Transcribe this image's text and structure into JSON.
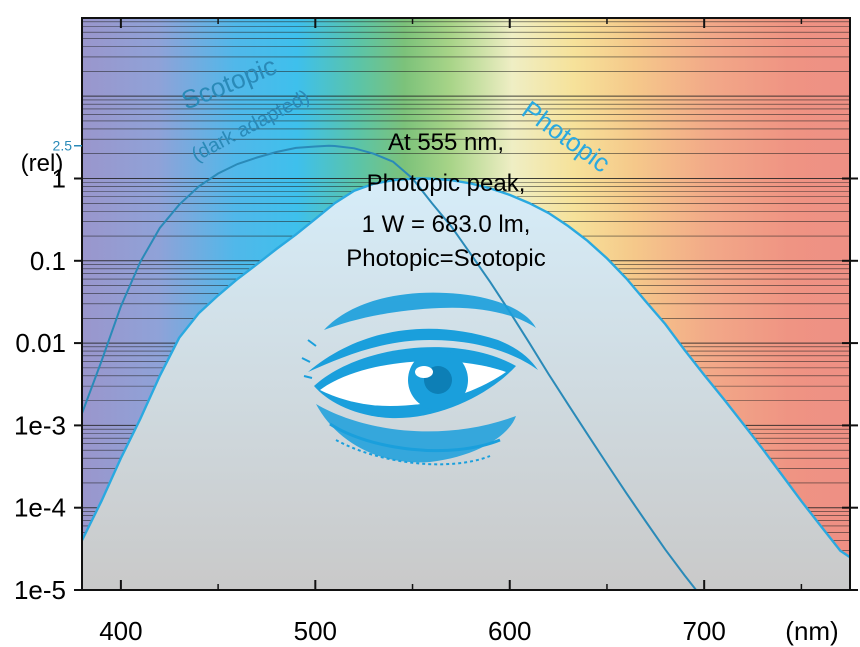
{
  "chart_data": {
    "type": "line",
    "xlabel": "(nm)",
    "ylabel": "(rel)",
    "xlim": [
      380,
      775
    ],
    "ylim_log10": [
      -5,
      1.95
    ],
    "y_scale": "log",
    "grid": true,
    "x_ticks": [
      {
        "value": 400,
        "label": "400"
      },
      {
        "value": 500,
        "label": "500"
      },
      {
        "value": 600,
        "label": "600"
      },
      {
        "value": 700,
        "label": "700"
      }
    ],
    "y_ticks": [
      {
        "value": 1,
        "label": "1"
      },
      {
        "value": 0.1,
        "label": "0.1"
      },
      {
        "value": 0.01,
        "label": "0.01"
      },
      {
        "value": 0.001,
        "label": "1e-3"
      },
      {
        "value": 0.0001,
        "label": "1e-4"
      },
      {
        "value": 1e-05,
        "label": "1e-5"
      }
    ],
    "y_marker": {
      "value": 2.5,
      "label": "2.5"
    },
    "series": [
      {
        "name": "Photopic",
        "color": "#2aa9e0",
        "x": [
          380,
          390,
          400,
          410,
          420,
          430,
          440,
          450,
          460,
          470,
          480,
          490,
          500,
          510,
          520,
          530,
          540,
          550,
          555,
          560,
          570,
          580,
          590,
          600,
          610,
          620,
          630,
          640,
          650,
          660,
          670,
          680,
          690,
          700,
          710,
          720,
          730,
          740,
          750,
          760,
          770,
          775
        ],
        "y": [
          4e-05,
          0.00012,
          0.0004,
          0.0012,
          0.004,
          0.0116,
          0.023,
          0.038,
          0.06,
          0.091,
          0.139,
          0.208,
          0.323,
          0.503,
          0.71,
          0.862,
          0.954,
          0.995,
          1.0,
          0.995,
          0.952,
          0.87,
          0.757,
          0.631,
          0.503,
          0.381,
          0.265,
          0.175,
          0.107,
          0.061,
          0.032,
          0.017,
          0.0082,
          0.0041,
          0.0021,
          0.00105,
          0.00052,
          0.00025,
          0.00012,
          6e-05,
          3e-05,
          2.5e-05
        ]
      },
      {
        "name": "Scotopic",
        "color": "#2a8ab8",
        "x": [
          380,
          390,
          400,
          410,
          420,
          430,
          440,
          450,
          460,
          470,
          480,
          490,
          500,
          507,
          510,
          520,
          530,
          540,
          550,
          560,
          570,
          580,
          590,
          600,
          610,
          620,
          630,
          640,
          650,
          660,
          670,
          680,
          690,
          700,
          710,
          720
        ],
        "y": [
          0.0014,
          0.006,
          0.028,
          0.097,
          0.25,
          0.48,
          0.8,
          1.15,
          1.5,
          1.8,
          2.1,
          2.35,
          2.45,
          2.5,
          2.48,
          2.33,
          2.0,
          1.6,
          1.0,
          0.5,
          0.26,
          0.12,
          0.055,
          0.024,
          0.0101,
          0.0042,
          0.0018,
          0.00078,
          0.00034,
          0.00015,
          6.8e-05,
          3.1e-05,
          1.5e-05,
          7.5e-06,
          3.8e-06,
          2e-06
        ]
      }
    ],
    "series_labels": {
      "scotopic": "Scotopic",
      "scotopic_sub": "(dark adapted)",
      "photopic": "Photopic"
    },
    "annotation_lines": [
      "At 555 nm,",
      "Photopic peak,",
      "1 W = 683.0 lm,",
      "Photopic=Scotopic"
    ],
    "colors": {
      "photopic_fill": "#d9ecf6",
      "photopic_fill_bottom": "#c8c8c8",
      "eye": "#1a9fdc",
      "axis": "#111111"
    }
  }
}
